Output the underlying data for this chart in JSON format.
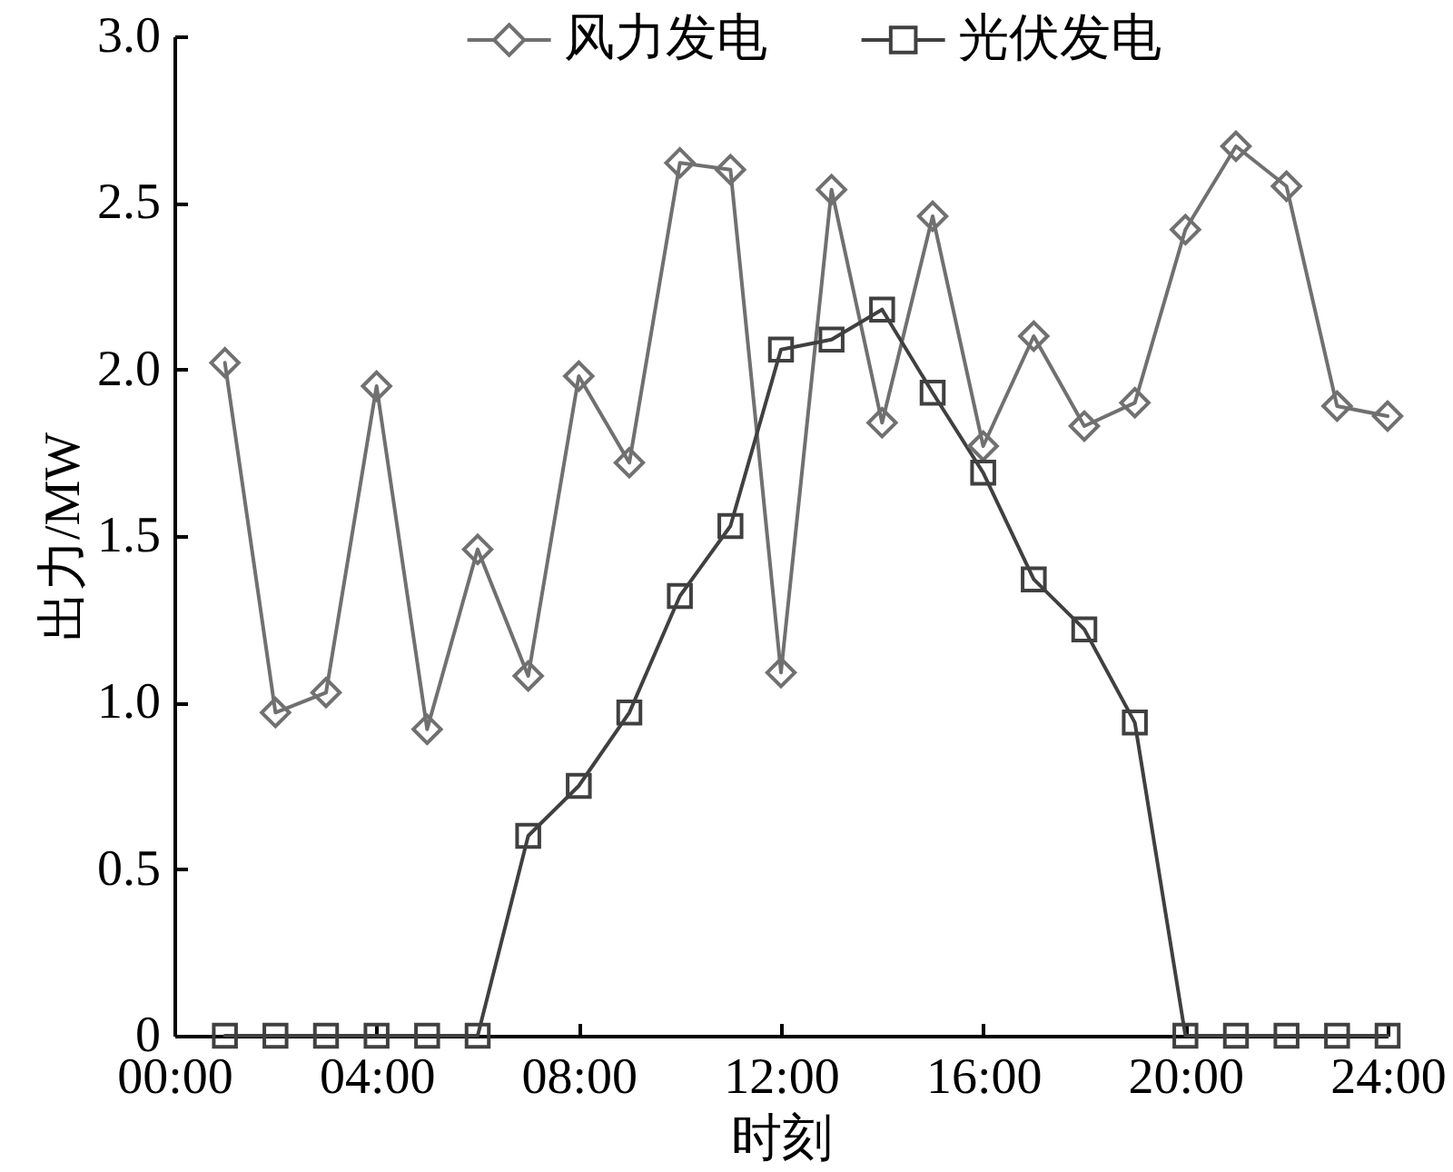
{
  "chart_data": {
    "type": "line",
    "xlabel": "时刻",
    "ylabel": "出力/MW",
    "legend": "top",
    "x": [
      1,
      2,
      3,
      4,
      5,
      6,
      7,
      8,
      9,
      10,
      11,
      12,
      13,
      14,
      15,
      16,
      17,
      18,
      19,
      20,
      21,
      22,
      23,
      24
    ],
    "xlim": [
      0,
      24
    ],
    "xticks": [
      {
        "value": 0,
        "label": "00:00"
      },
      {
        "value": 4,
        "label": "04:00"
      },
      {
        "value": 8,
        "label": "08:00"
      },
      {
        "value": 12,
        "label": "12:00"
      },
      {
        "value": 16,
        "label": "16:00"
      },
      {
        "value": 20,
        "label": "20:00"
      },
      {
        "value": 24,
        "label": "24:00"
      }
    ],
    "ylim": [
      0,
      3
    ],
    "yticks": [
      0,
      0.5,
      {
        "value": 1,
        "label": "1.0"
      },
      1.5,
      {
        "value": 2,
        "label": "2.0"
      },
      2.5,
      {
        "value": 3,
        "label": "3.0"
      }
    ],
    "series": [
      {
        "name": "风力发电",
        "color": "#707070",
        "marker": "diamond",
        "values": [
          2.02,
          0.97,
          1.03,
          1.95,
          0.92,
          1.46,
          1.08,
          1.98,
          1.72,
          2.62,
          2.6,
          1.09,
          2.54,
          1.84,
          2.46,
          1.77,
          2.1,
          1.83,
          1.9,
          2.42,
          2.67,
          2.55,
          1.89,
          1.86
        ]
      },
      {
        "name": "光伏发电",
        "color": "#404040",
        "marker": "square",
        "values": [
          0,
          0,
          0,
          0,
          0,
          0,
          0.6,
          0.75,
          0.97,
          1.32,
          1.53,
          2.06,
          2.09,
          2.18,
          1.93,
          1.69,
          1.37,
          1.22,
          0.94,
          0,
          0,
          0,
          0,
          0
        ]
      }
    ]
  }
}
